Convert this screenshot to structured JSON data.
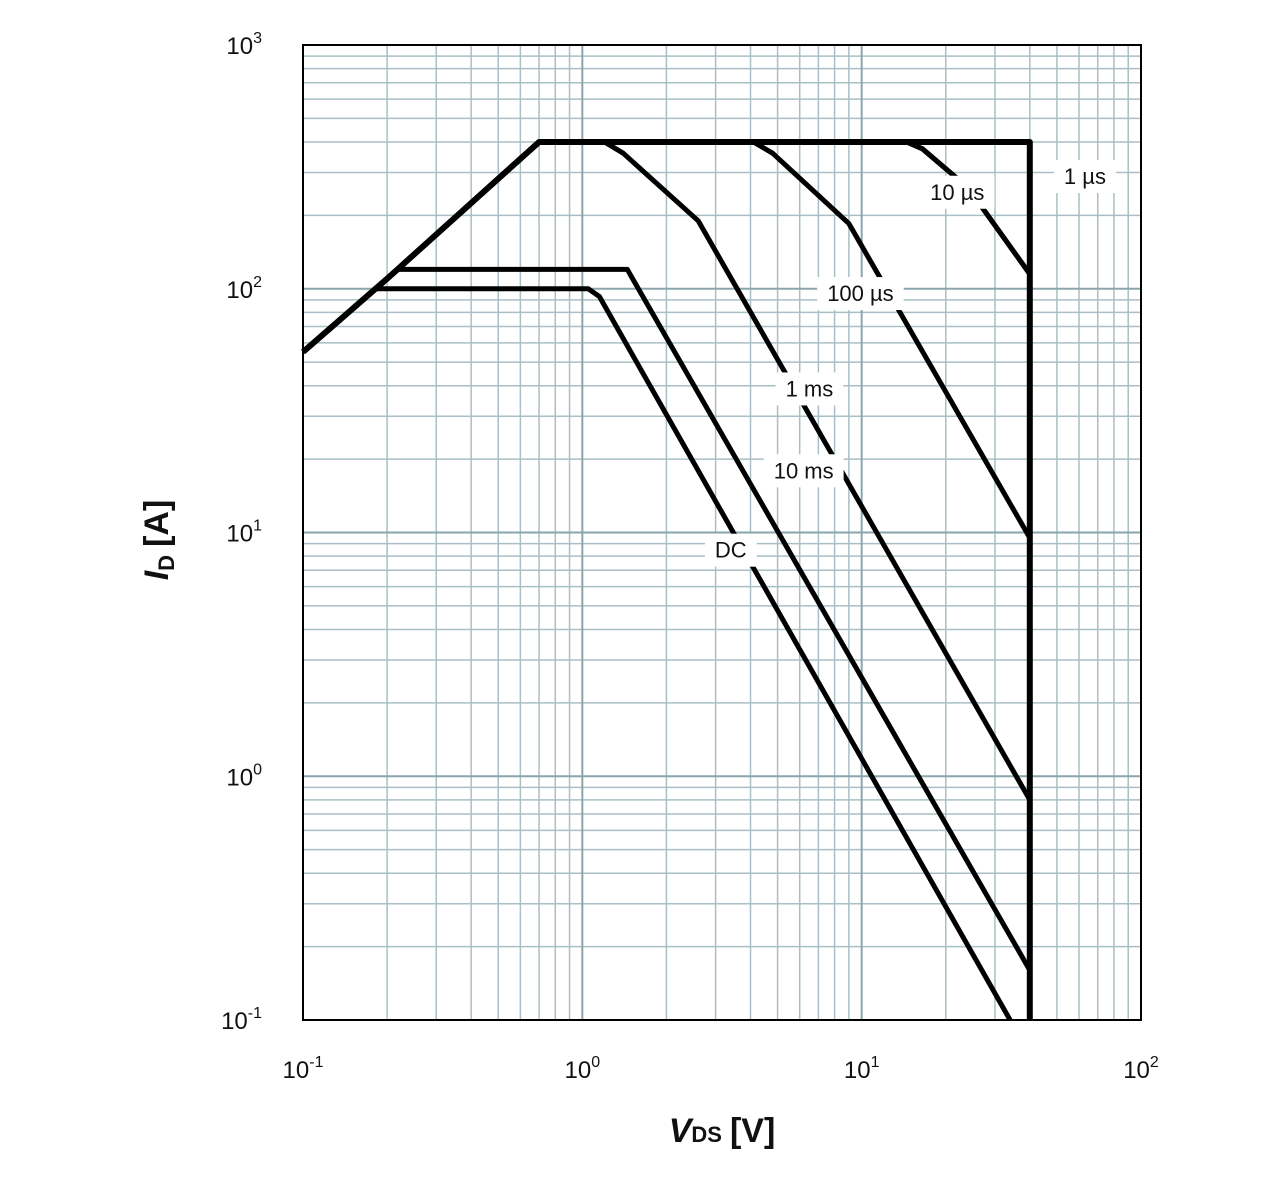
{
  "chart_data": {
    "type": "line",
    "title": "",
    "x_scale": "log",
    "y_scale": "log",
    "xlim": [
      0.1,
      100
    ],
    "ylim": [
      0.1,
      1000
    ],
    "grid": true,
    "x_ticks": [
      {
        "value": 0.1,
        "base": "10",
        "exp": "-1"
      },
      {
        "value": 1,
        "base": "10",
        "exp": "0"
      },
      {
        "value": 10,
        "base": "10",
        "exp": "1"
      },
      {
        "value": 100,
        "base": "10",
        "exp": "2"
      }
    ],
    "y_ticks": [
      {
        "value": 0.1,
        "base": "10",
        "exp": "-1"
      },
      {
        "value": 1,
        "base": "10",
        "exp": "0"
      },
      {
        "value": 10,
        "base": "10",
        "exp": "1"
      },
      {
        "value": 100,
        "base": "10",
        "exp": "2"
      },
      {
        "value": 1000,
        "base": "10",
        "exp": "3"
      }
    ],
    "xlabel": {
      "symbol": "V",
      "subscript": "DS",
      "unit": "[V]"
    },
    "ylabel": {
      "symbol": "I",
      "subscript": "D",
      "unit": "[A]"
    },
    "boundary": {
      "name": "",
      "points": [
        [
          0.1,
          55
        ],
        [
          0.2,
          110
        ],
        [
          0.7,
          400
        ],
        [
          40,
          400
        ],
        [
          40,
          0.1
        ]
      ]
    },
    "series": [
      {
        "name": "1 µs",
        "label_pos": [
          63,
          290
        ],
        "points": [
          [
            14.5,
            400
          ],
          [
            16.5,
            375
          ],
          [
            24,
            260
          ],
          [
            40,
            115
          ]
        ]
      },
      {
        "name": "10 µs",
        "label_pos": [
          22,
          250
        ],
        "points": [
          [
            14.5,
            400
          ],
          [
            16.5,
            375
          ],
          [
            24,
            260
          ],
          [
            40,
            115
          ]
        ]
      },
      {
        "name": "100 µs",
        "label_pos": [
          9.9,
          96
        ],
        "points": [
          [
            4.1,
            400
          ],
          [
            4.8,
            360
          ],
          [
            9,
            185
          ],
          [
            40,
            9.5
          ]
        ]
      },
      {
        "name": "1 ms",
        "label_pos": [
          6.5,
          39
        ],
        "points": [
          [
            1.2,
            400
          ],
          [
            1.4,
            360
          ],
          [
            2.6,
            190
          ],
          [
            40,
            0.8
          ]
        ]
      },
      {
        "name": "10 ms",
        "label_pos": [
          6.2,
          18
        ],
        "points": [
          [
            0.22,
            120
          ],
          [
            1.45,
            120
          ],
          [
            1.5,
            112
          ],
          [
            40,
            0.16
          ]
        ]
      },
      {
        "name": "DC",
        "label_pos": [
          3.4,
          8.5
        ],
        "points": [
          [
            0.18,
            100
          ],
          [
            1.05,
            100
          ],
          [
            1.15,
            93
          ],
          [
            34,
            0.1
          ]
        ]
      }
    ]
  }
}
